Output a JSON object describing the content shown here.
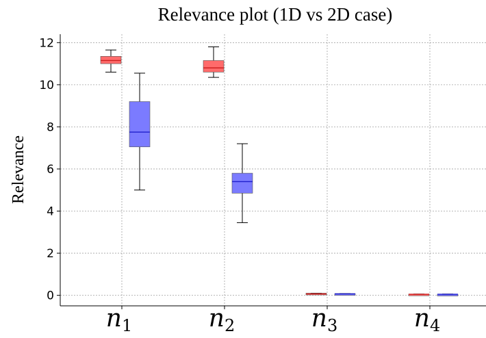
{
  "chart_data": {
    "type": "box",
    "title": "Relevance plot (1D vs 2D case)",
    "xlabel": "",
    "ylabel": "Relevance",
    "ylim": [
      -0.5,
      12.4
    ],
    "yticks": [
      0,
      2,
      4,
      6,
      8,
      10,
      12
    ],
    "grid": true,
    "categories": [
      {
        "base": "n",
        "sub": "1"
      },
      {
        "base": "n",
        "sub": "2"
      },
      {
        "base": "n",
        "sub": "3"
      },
      {
        "base": "n",
        "sub": "4"
      }
    ],
    "series": [
      {
        "color": "#ff6b6b",
        "median_color": "#cc2020",
        "boxes": [
          {
            "whislo": 10.6,
            "q1": 11.0,
            "med": 11.15,
            "q3": 11.35,
            "whishi": 11.65
          },
          {
            "whislo": 10.35,
            "q1": 10.6,
            "med": 10.8,
            "q3": 11.15,
            "whishi": 11.8
          },
          {
            "whislo": 0.05,
            "q1": 0.05,
            "med": 0.07,
            "q3": 0.1,
            "whishi": 0.1
          },
          {
            "whislo": 0.04,
            "q1": 0.04,
            "med": 0.05,
            "q3": 0.06,
            "whishi": 0.06
          }
        ]
      },
      {
        "color": "#7b7bff",
        "median_color": "#1f1fcc",
        "boxes": [
          {
            "whislo": 5.0,
            "q1": 7.05,
            "med": 7.75,
            "q3": 9.2,
            "whishi": 10.55
          },
          {
            "whislo": 3.45,
            "q1": 4.85,
            "med": 5.4,
            "q3": 5.8,
            "whishi": 7.2
          },
          {
            "whislo": 0.05,
            "q1": 0.05,
            "med": 0.07,
            "q3": 0.08,
            "whishi": 0.08
          },
          {
            "whislo": 0.03,
            "q1": 0.04,
            "med": 0.05,
            "q3": 0.05,
            "whishi": 0.06
          }
        ]
      }
    ]
  }
}
